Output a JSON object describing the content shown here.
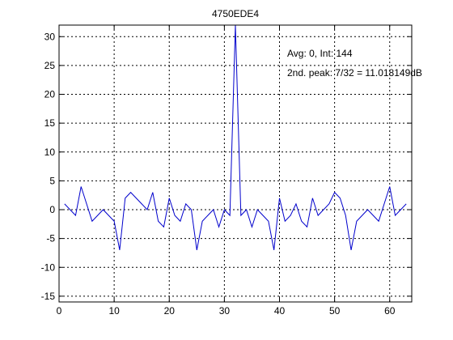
{
  "chart_data": {
    "type": "line",
    "title": "4750EDE4",
    "xlabel": "",
    "ylabel": "",
    "xlim": [
      0,
      64
    ],
    "ylim": [
      -16,
      32
    ],
    "grid": true,
    "xticks": [
      0,
      10,
      20,
      30,
      40,
      50,
      60
    ],
    "yticks": [
      -15,
      -10,
      -5,
      0,
      5,
      10,
      15,
      20,
      25,
      30
    ],
    "annotations": [
      "Avg: 0, Int: 144",
      "2nd. peak: 7/32 = 11.018149dB"
    ],
    "series": [
      {
        "color": "#0000cc",
        "x": [
          1,
          2,
          3,
          4,
          5,
          6,
          7,
          8,
          9,
          10,
          11,
          12,
          13,
          14,
          15,
          16,
          17,
          18,
          19,
          20,
          21,
          22,
          23,
          24,
          25,
          26,
          27,
          28,
          29,
          30,
          31,
          32,
          33,
          34,
          35,
          36,
          37,
          38,
          39,
          40,
          41,
          42,
          43,
          44,
          45,
          46,
          47,
          48,
          49,
          50,
          51,
          52,
          53,
          54,
          55,
          56,
          57,
          58,
          59,
          60,
          61,
          62,
          63
        ],
        "y": [
          1,
          0,
          -1,
          4,
          1,
          -2,
          -1,
          0,
          -1,
          -2,
          -7,
          2,
          3,
          2,
          1,
          0,
          3,
          -2,
          -3,
          2,
          -1,
          -2,
          1,
          0,
          -7,
          -2,
          -1,
          0,
          -3,
          0,
          -1,
          32,
          -1,
          0,
          -3,
          0,
          -1,
          -2,
          -7,
          2,
          -2,
          -1,
          1,
          -2,
          -3,
          2,
          -1,
          0,
          1,
          3,
          2,
          -1,
          -7,
          -2,
          -1,
          0,
          -1,
          -2,
          1,
          4,
          -1,
          0,
          1
        ]
      }
    ]
  }
}
